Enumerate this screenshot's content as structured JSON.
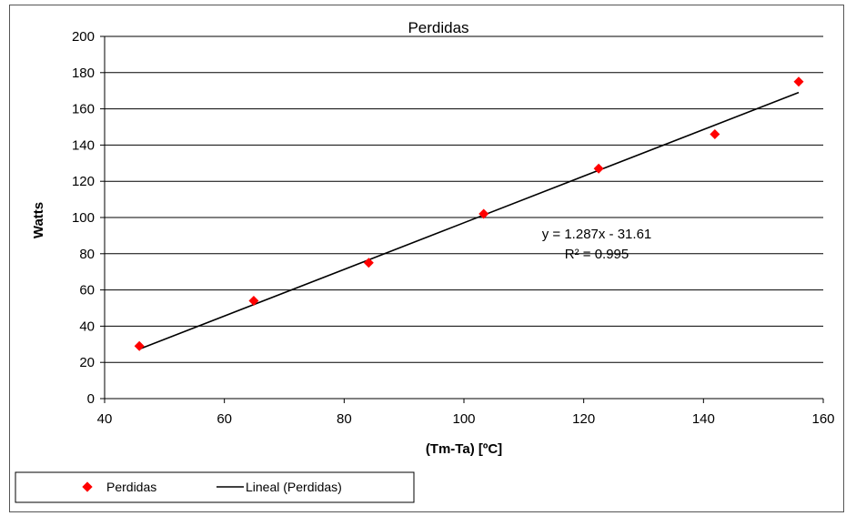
{
  "chart_data": {
    "type": "scatter",
    "title": "Perdidas",
    "xlabel": "(Tm-Ta) [ºC]",
    "ylabel": "Watts",
    "xlim": [
      40,
      160
    ],
    "ylim": [
      0,
      200
    ],
    "x_ticks": [
      "40",
      "60",
      "80",
      "100",
      "120",
      "140",
      "160"
    ],
    "y_ticks": [
      "0",
      "20",
      "40",
      "60",
      "80",
      "100",
      "120",
      "140",
      "160",
      "180",
      "200"
    ],
    "grid": "horizontal",
    "legend_position": "bottom-left",
    "series": [
      {
        "name": "Perdidas",
        "kind": "scatter",
        "marker": "diamond",
        "color": "#ff0000",
        "x": [
          45.8,
          64.9,
          84.1,
          103.3,
          122.5,
          141.9,
          155.9
        ],
        "y": [
          29,
          54,
          75,
          102,
          127,
          146,
          175
        ]
      },
      {
        "name": "Lineal (Perdidas)",
        "kind": "trendline",
        "color": "#000000",
        "slope": 1.287,
        "intercept": -31.61,
        "x_range": [
          45.8,
          155.9
        ]
      }
    ],
    "annotations": {
      "equation": "y = 1.287x - 31.61",
      "r_squared": "R² = 0.995"
    }
  }
}
